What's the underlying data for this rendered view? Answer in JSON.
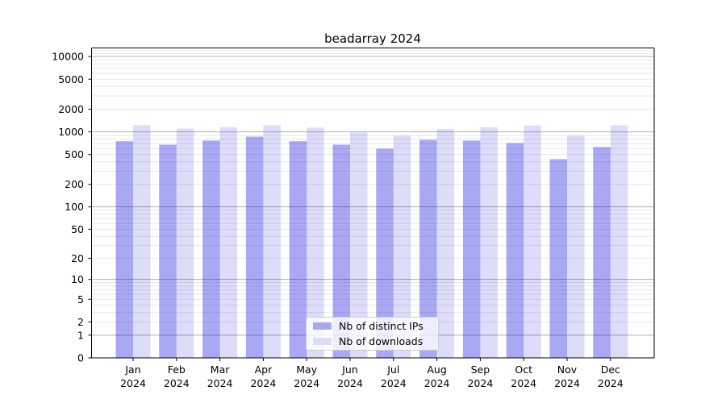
{
  "title": "beadarray 2024",
  "legend": {
    "items": [
      {
        "label": "Nb of distinct IPs"
      },
      {
        "label": "Nb of downloads"
      }
    ]
  },
  "chart_data": {
    "type": "bar",
    "title": "beadarray 2024",
    "scale": "log10(1+y)",
    "categories": [
      "Jan",
      "Feb",
      "Mar",
      "Apr",
      "May",
      "Jun",
      "Jul",
      "Aug",
      "Sep",
      "Oct",
      "Nov",
      "Dec"
    ],
    "year_label": "2024",
    "series": [
      {
        "name": "Nb of distinct IPs",
        "values": [
          750,
          675,
          765,
          865,
          750,
          675,
          597,
          785,
          765,
          710,
          433,
          627
        ],
        "fill_opacity": 0.34,
        "legend_color": "#a8a8f3"
      },
      {
        "name": "Nb of downloads",
        "values": [
          1230,
          1105,
          1160,
          1230,
          1135,
          980,
          890,
          1090,
          1150,
          1210,
          890,
          1220
        ],
        "fill_opacity": 0.135,
        "legend_color": "#dcdcfa"
      }
    ],
    "bar_base_color": "#0000dc",
    "y_ticks": [
      0,
      1,
      2,
      5,
      10,
      20,
      50,
      100,
      200,
      500,
      1000,
      2000,
      5000,
      10000
    ],
    "y_grid_major": [
      1,
      10,
      100,
      1000,
      10000
    ],
    "y_grid_minor_extra": [
      11000,
      12000
    ],
    "ylim": [
      0,
      13000
    ],
    "grid": {
      "major_color": "#b0b0b0",
      "minor_color": "#e7e7e7"
    },
    "axis_color": "#000000",
    "legend_position": "inside-bottom-center"
  }
}
